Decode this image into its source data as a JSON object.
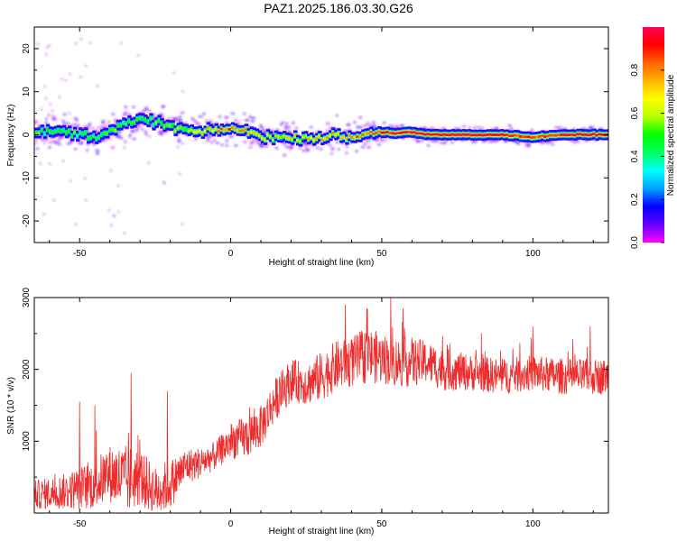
{
  "figure": {
    "title": "PAZ1.2025.186.03.30.G26"
  },
  "chart_data": [
    {
      "type": "heatmap",
      "xlabel": "Height of straight line (km)",
      "ylabel": "Frequency (Hz)",
      "xlim": [
        -65,
        125
      ],
      "ylim": [
        -25,
        25
      ],
      "xticks": [
        -50,
        0,
        50,
        100
      ],
      "yticks": [
        20,
        10,
        0,
        -10,
        -20
      ],
      "colorbar": {
        "label": "Normalized spectral amplitude",
        "range": [
          0,
          1
        ],
        "ticks": [
          "0.0",
          "0.2",
          "0.4",
          "0.6",
          "0.8"
        ],
        "colors": [
          "#ff00ff",
          "#6400ff",
          "#0000ff",
          "#00a0ff",
          "#00ffff",
          "#00ff64",
          "#00ff00",
          "#b4ff00",
          "#ffff00",
          "#ffb400",
          "#ff6400",
          "#ff0000",
          "#ff0050"
        ]
      },
      "ridge": {
        "x": [
          -65,
          -55,
          -45,
          -40,
          -35,
          -30,
          -25,
          -20,
          -15,
          -10,
          -5,
          0,
          5,
          10,
          15,
          20,
          25,
          30,
          35,
          40,
          45,
          50,
          55,
          60,
          65,
          70,
          80,
          90,
          95,
          100,
          105,
          110,
          115,
          125
        ],
        "frequency": [
          0.5,
          0.8,
          -0.5,
          0.8,
          2.5,
          3.5,
          3.0,
          2.0,
          1.2,
          0.5,
          1.0,
          1.5,
          0.8,
          -0.2,
          -0.6,
          -0.8,
          -0.7,
          -0.5,
          -0.3,
          -0.8,
          0.2,
          0.6,
          0.4,
          0.6,
          0.0,
          0.0,
          0.0,
          0.0,
          -0.2,
          -0.6,
          -0.3,
          0.0,
          0.0,
          0.0
        ],
        "amplitude": [
          0.35,
          0.3,
          0.35,
          0.4,
          0.3,
          0.3,
          0.35,
          0.4,
          0.4,
          0.6,
          0.7,
          0.8,
          0.7,
          0.6,
          0.55,
          0.55,
          0.6,
          0.65,
          0.7,
          0.75,
          0.8,
          0.9,
          0.9,
          0.95,
          1.0,
          1.0,
          1.0,
          1.0,
          0.9,
          0.8,
          0.85,
          0.95,
          1.0,
          1.0
        ]
      }
    },
    {
      "type": "line",
      "xlabel": "Height of straight line (km)",
      "ylabel": "SNR (10 * v/v)",
      "xlim": [
        -65,
        125
      ],
      "ylim": [
        0,
        3000
      ],
      "xticks": [
        -50,
        0,
        50,
        100
      ],
      "yticks": [
        1000,
        2000,
        3000
      ],
      "color": "#ee2c2c",
      "envelope": {
        "x": [
          -65,
          -55,
          -45,
          -40,
          -35,
          -30,
          -25,
          -20,
          -15,
          -10,
          -5,
          0,
          5,
          10,
          15,
          20,
          25,
          30,
          35,
          40,
          45,
          50,
          55,
          60,
          65,
          70,
          80,
          90,
          100,
          110,
          125
        ],
        "mean": [
          250,
          300,
          400,
          550,
          450,
          500,
          300,
          400,
          650,
          700,
          800,
          1000,
          1050,
          1200,
          1600,
          1850,
          1800,
          1900,
          2050,
          2100,
          2200,
          2150,
          2100,
          2100,
          2100,
          2000,
          1950,
          1900,
          1950,
          1900,
          1900
        ],
        "spread": [
          200,
          250,
          350,
          400,
          500,
          400,
          350,
          350,
          250,
          220,
          200,
          250,
          300,
          300,
          300,
          300,
          300,
          350,
          350,
          350,
          400,
          350,
          350,
          350,
          300,
          300,
          250,
          250,
          250,
          250,
          250
        ]
      },
      "peaks": [
        {
          "x": -50,
          "y": 1550
        },
        {
          "x": -45,
          "y": 1500
        },
        {
          "x": -33,
          "y": 1950
        },
        {
          "x": -21,
          "y": 1700
        },
        {
          "x": 38,
          "y": 2900
        },
        {
          "x": 45,
          "y": 2850
        },
        {
          "x": 53,
          "y": 3000
        },
        {
          "x": 57,
          "y": 2850
        },
        {
          "x": 83,
          "y": 2500
        },
        {
          "x": 100,
          "y": 2600
        },
        {
          "x": 119,
          "y": 2600
        }
      ]
    }
  ]
}
